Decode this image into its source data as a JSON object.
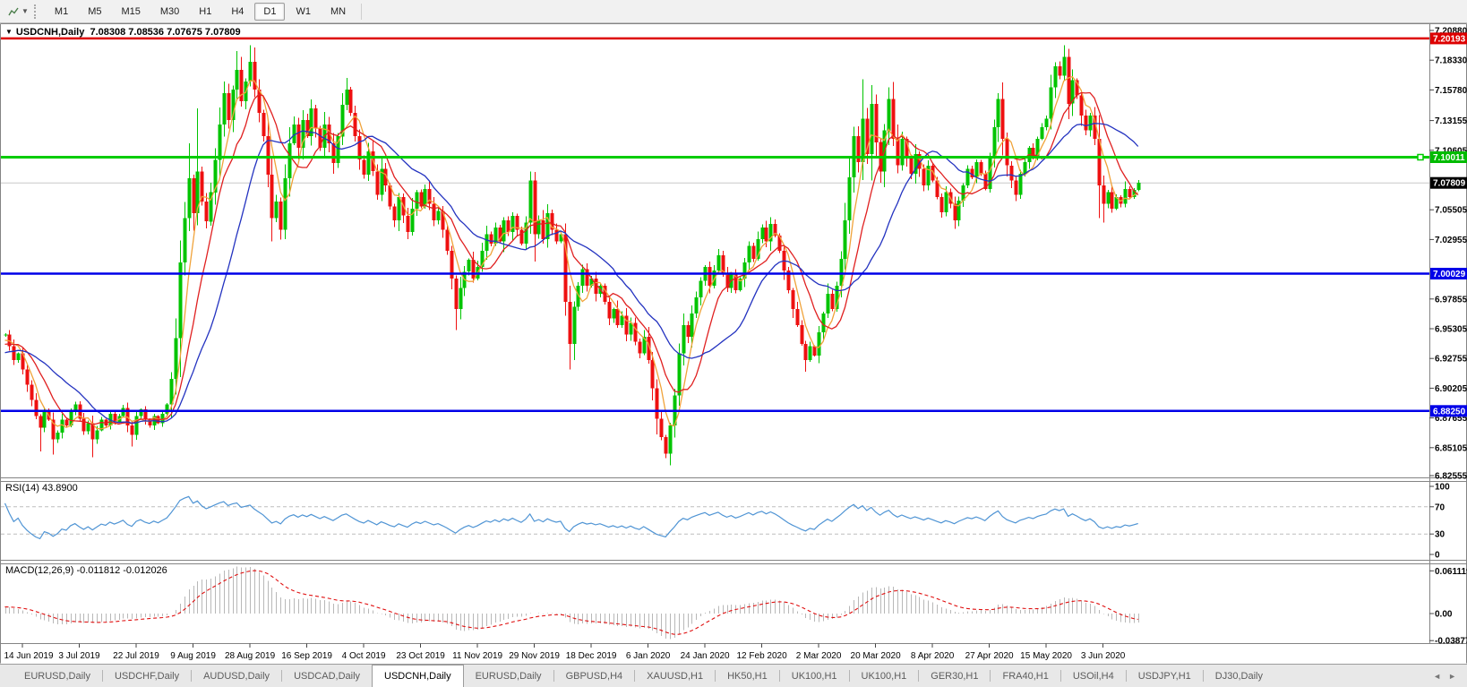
{
  "toolbar": {
    "timeframes": [
      {
        "label": "M1",
        "active": false
      },
      {
        "label": "M5",
        "active": false
      },
      {
        "label": "M15",
        "active": false
      },
      {
        "label": "M30",
        "active": false
      },
      {
        "label": "H1",
        "active": false
      },
      {
        "label": "H4",
        "active": false
      },
      {
        "label": "D1",
        "active": true
      },
      {
        "label": "W1",
        "active": false
      },
      {
        "label": "MN",
        "active": false
      }
    ]
  },
  "title": {
    "symbol": "USDCNH,Daily",
    "ohlc_text": "7.08308 7.08536 7.07675 7.07809"
  },
  "tabs": {
    "items": [
      {
        "label": "EURUSD,Daily",
        "active": false
      },
      {
        "label": "USDCHF,Daily",
        "active": false
      },
      {
        "label": "AUDUSD,Daily",
        "active": false
      },
      {
        "label": "USDCAD,Daily",
        "active": false
      },
      {
        "label": "USDCNH,Daily",
        "active": true
      },
      {
        "label": "EURUSD,Daily",
        "active": false
      },
      {
        "label": "GBPUSD,H4",
        "active": false
      },
      {
        "label": "XAUUSD,H1",
        "active": false
      },
      {
        "label": "HK50,H1",
        "active": false
      },
      {
        "label": "UK100,H1",
        "active": false
      },
      {
        "label": "UK100,H1",
        "active": false
      },
      {
        "label": "GER30,H1",
        "active": false
      },
      {
        "label": "FRA40,H1",
        "active": false
      },
      {
        "label": "USOil,H4",
        "active": false
      },
      {
        "label": "USDJPY,H1",
        "active": false
      },
      {
        "label": "DJ30,Daily",
        "active": false
      }
    ],
    "nav_left": "◄",
    "nav_right": "►"
  },
  "chart_data": {
    "type": "candlestick",
    "symbol": "USDCNH",
    "timeframe": "Daily",
    "ohlc": {
      "open": "7.08308",
      "high": "7.08536",
      "low": "7.07675",
      "close": "7.07809"
    },
    "seed": 11,
    "candle_colors": {
      "up": "#00c400",
      "down": "#ee1010"
    },
    "price_axis_ticks": [
      {
        "label": "7.20880",
        "value": 7.2088
      },
      {
        "label": "7.18330",
        "value": 7.1833
      },
      {
        "label": "7.15780",
        "value": 7.1578
      },
      {
        "label": "7.13155",
        "value": 7.13155
      },
      {
        "label": "7.10605",
        "value": 7.10605
      },
      {
        "label": "7.05505",
        "value": 7.05505
      },
      {
        "label": "7.02955",
        "value": 7.02955
      },
      {
        "label": "6.97855",
        "value": 6.97855
      },
      {
        "label": "6.95305",
        "value": 6.95305
      },
      {
        "label": "6.92755",
        "value": 6.92755
      },
      {
        "label": "6.90205",
        "value": 6.90205
      },
      {
        "label": "6.87655",
        "value": 6.87655
      },
      {
        "label": "6.85105",
        "value": 6.85105
      },
      {
        "label": "6.82555",
        "value": 6.82555
      }
    ],
    "hlines": [
      {
        "value": 7.20193,
        "label": "7.20193",
        "color": "#dd0000",
        "width": 2.5
      },
      {
        "value": 7.10011,
        "label": "7.10011",
        "color": "#00cc00",
        "width": 3,
        "handle": true
      },
      {
        "value": 7.00029,
        "label": "7.00029",
        "color": "#0000e8",
        "width": 2.5
      },
      {
        "value": 6.8825,
        "label": "6.88250",
        "color": "#0000e8",
        "width": 2.5
      }
    ],
    "current_price": {
      "value": 7.07809,
      "label": "7.07809",
      "line_color": "#c8c8c8",
      "badge_color": "#000000"
    },
    "date_ticks": [
      "14 Jun 2019",
      "3 Jul 2019",
      "22 Jul 2019",
      "9 Aug 2019",
      "28 Aug 2019",
      "16 Sep 2019",
      "4 Oct 2019",
      "23 Oct 2019",
      "11 Nov 2019",
      "29 Nov 2019",
      "18 Dec 2019",
      "6 Jan 2020",
      "24 Jan 2020",
      "12 Feb 2020",
      "2 Mar 2020",
      "20 Mar 2020",
      "8 Apr 2020",
      "27 Apr 2020",
      "15 May 2020",
      "3 Jun 2020"
    ],
    "moving_averages": [
      {
        "period": 5,
        "color": "#f0a33a"
      },
      {
        "period": 10,
        "color": "#e02020"
      },
      {
        "period": 20,
        "color": "#2433c0"
      }
    ],
    "rsi": {
      "label": "RSI(14) 43.8900",
      "period": 14,
      "current": 43.89,
      "line_color": "#4f94d4",
      "axis": [
        {
          "label": "100",
          "v": 100
        },
        {
          "label": "70",
          "v": 70,
          "dashed": true
        },
        {
          "label": "30",
          "v": 30,
          "dashed": true
        },
        {
          "label": "0",
          "v": 0
        }
      ]
    },
    "macd": {
      "label": "MACD(12,26,9) -0.011812 -0.012026",
      "main": -0.011812,
      "signal": -0.012026,
      "hist_color": "#b8b8b8",
      "signal_color": "#e01010",
      "axis": [
        {
          "label": "0.061119",
          "v": 0.061119
        },
        {
          "label": "0.00",
          "v": 0
        },
        {
          "label": "-0.038777",
          "v": -0.038777
        }
      ]
    },
    "closes": [
      6.948,
      6.938,
      6.926,
      6.932,
      6.918,
      6.905,
      6.892,
      6.878,
      6.868,
      6.882,
      6.875,
      6.858,
      6.864,
      6.875,
      6.87,
      6.882,
      6.888,
      6.876,
      6.865,
      6.872,
      6.858,
      6.866,
      6.875,
      6.87,
      6.88,
      6.873,
      6.878,
      6.885,
      6.87,
      6.862,
      6.878,
      6.884,
      6.875,
      6.87,
      6.878,
      6.872,
      6.88,
      6.888,
      6.91,
      6.945,
      7.01,
      7.048,
      7.082,
      7.052,
      7.088,
      7.062,
      7.045,
      7.07,
      7.098,
      7.128,
      7.155,
      7.132,
      7.158,
      7.175,
      7.148,
      7.165,
      7.182,
      7.158,
      7.138,
      7.118,
      7.085,
      7.048,
      7.062,
      7.038,
      7.082,
      7.112,
      7.128,
      7.108,
      7.132,
      7.118,
      7.142,
      7.125,
      7.108,
      7.128,
      7.112,
      7.095,
      7.118,
      7.145,
      7.158,
      7.138,
      7.118,
      7.098,
      7.085,
      7.105,
      7.088,
      7.068,
      7.09,
      7.076,
      7.058,
      7.046,
      7.066,
      7.05,
      7.036,
      7.056,
      7.07,
      7.058,
      7.073,
      7.06,
      7.046,
      7.054,
      7.038,
      7.02,
      6.996,
      6.97,
      6.988,
      7.002,
      7.012,
      6.996,
      7.006,
      7.02,
      7.034,
      7.026,
      7.04,
      7.028,
      7.046,
      7.036,
      7.05,
      7.038,
      7.026,
      7.044,
      7.08,
      7.034,
      7.046,
      7.03,
      7.052,
      7.038,
      7.028,
      7.034,
      6.976,
      6.94,
      6.972,
      6.99,
      7.004,
      6.99,
      6.996,
      6.983,
      6.99,
      6.976,
      6.962,
      6.97,
      6.956,
      6.964,
      6.948,
      6.958,
      6.942,
      6.932,
      6.946,
      6.926,
      6.902,
      6.876,
      6.86,
      6.846,
      6.87,
      6.896,
      6.932,
      6.956,
      6.946,
      6.966,
      6.98,
      6.994,
      7.006,
      6.99,
      7.003,
      7.016,
      7.0,
      6.988,
      7.0,
      6.986,
      6.996,
      7.01,
      7.024,
      7.013,
      7.03,
      7.04,
      7.028,
      7.043,
      7.033,
      7.02,
      7.003,
      6.986,
      6.97,
      6.956,
      6.94,
      6.926,
      6.938,
      6.93,
      6.95,
      6.966,
      6.983,
      6.97,
      6.99,
      7.013,
      7.046,
      7.083,
      7.118,
      7.096,
      7.133,
      7.103,
      7.146,
      7.113,
      7.088,
      7.123,
      7.15,
      7.116,
      7.093,
      7.116,
      7.1,
      7.086,
      7.103,
      7.09,
      7.076,
      7.093,
      7.08,
      7.066,
      7.053,
      7.07,
      7.06,
      7.046,
      7.063,
      7.076,
      7.09,
      7.083,
      7.096,
      7.086,
      7.073,
      7.1,
      7.126,
      7.15,
      7.116,
      7.093,
      7.08,
      7.068,
      7.086,
      7.096,
      7.108,
      7.1,
      7.116,
      7.126,
      7.133,
      7.16,
      7.178,
      7.17,
      7.186,
      7.146,
      7.166,
      7.153,
      7.136,
      7.123,
      7.136,
      7.116,
      7.076,
      7.06,
      7.07,
      7.056,
      7.066,
      7.06,
      7.073,
      7.066,
      7.072,
      7.07809
    ],
    "wick_overrides": {
      "8": {
        "l": 6.848
      },
      "11": {
        "l": 6.845
      },
      "20": {
        "l": 6.843
      },
      "29": {
        "l": 6.852
      },
      "42": {
        "h": 7.112
      },
      "44": {
        "h": 7.142
      },
      "53": {
        "h": 7.191
      },
      "56": {
        "h": 7.196
      },
      "61": {
        "l": 7.028
      },
      "78": {
        "h": 7.168
      },
      "103": {
        "l": 6.952
      },
      "120": {
        "h": 7.088
      },
      "129": {
        "l": 6.918
      },
      "151": {
        "l": 6.842
      },
      "183": {
        "l": 6.916
      },
      "196": {
        "h": 7.167
      },
      "198": {
        "h": 7.162
      },
      "202": {
        "h": 7.16
      },
      "227": {
        "h": 7.155
      },
      "242": {
        "h": 7.196
      },
      "243": {
        "h": 7.193
      },
      "250": {
        "l": 7.048
      },
      "251": {
        "l": 7.044
      }
    }
  }
}
